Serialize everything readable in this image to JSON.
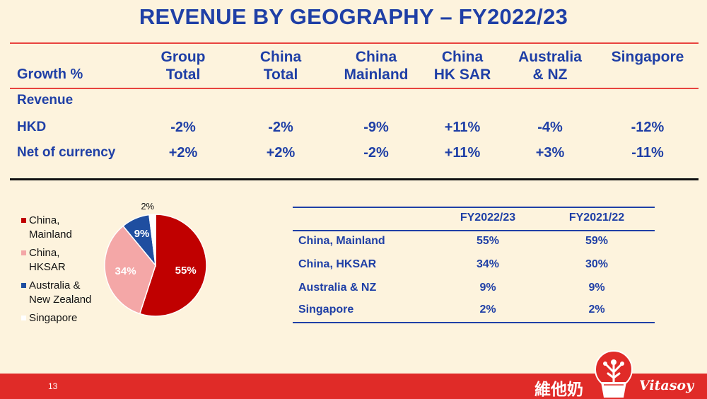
{
  "title": "REVENUE BY GEOGRAPHY – FY2022/23",
  "growth_table": {
    "header_label": "Growth %",
    "columns": [
      {
        "line1": "Group",
        "line2": "Total"
      },
      {
        "line1": "China",
        "line2": "Total"
      },
      {
        "line1": "China",
        "line2": "Mainland"
      },
      {
        "line1": "China",
        "line2": "HK SAR"
      },
      {
        "line1": "Australia",
        "line2": "& NZ"
      },
      {
        "line1": "Singapore",
        "line2": ""
      }
    ],
    "section_label": "Revenue",
    "rows": [
      {
        "label": "HKD",
        "values": [
          "-2%",
          "-2%",
          "-9%",
          "+11%",
          "-4%",
          "-12%"
        ]
      },
      {
        "label": "Net of currency",
        "values": [
          "+2%",
          "+2%",
          "-2%",
          "+11%",
          "+3%",
          "-11%"
        ]
      }
    ]
  },
  "legend": [
    {
      "line1": "China,",
      "line2": "Mainland",
      "color": "#c00000"
    },
    {
      "line1": "China,",
      "line2": "HKSAR",
      "color": "#f4a7a7"
    },
    {
      "line1": "Australia &",
      "line2": "New Zealand",
      "color": "#1f4ea0"
    },
    {
      "line1": "Singapore",
      "line2": "",
      "color": "#ffffff"
    }
  ],
  "chart_data": {
    "type": "pie",
    "title": "",
    "slices": [
      {
        "label": "China, Mainland",
        "value": 55,
        "display": "55%",
        "color": "#c00000",
        "text_color": "#ffffff"
      },
      {
        "label": "China, HKSAR",
        "value": 34,
        "display": "34%",
        "color": "#f4a7a7",
        "text_color": "#ffffff"
      },
      {
        "label": "Australia & New Zealand",
        "value": 9,
        "display": "9%",
        "color": "#1f4ea0",
        "text_color": "#ffffff"
      },
      {
        "label": "Singapore",
        "value": 2,
        "display": "2%",
        "color": "#ffffff",
        "text_color": "#111111"
      }
    ],
    "start": "top",
    "direction": "clockwise"
  },
  "share_table": {
    "columns": [
      "FY2022/23",
      "FY2021/22"
    ],
    "rows": [
      {
        "label": "China, Mainland",
        "values": [
          "55%",
          "59%"
        ]
      },
      {
        "label": "China, HKSAR",
        "values": [
          "34%",
          "30%"
        ]
      },
      {
        "label": "Australia & NZ",
        "values": [
          "9%",
          "9%"
        ]
      },
      {
        "label": "Singapore",
        "values": [
          "2%",
          "2%"
        ]
      }
    ]
  },
  "footer": {
    "page_number": "13",
    "logo_chinese": "維他奶",
    "logo_english": "Vitasoy"
  }
}
